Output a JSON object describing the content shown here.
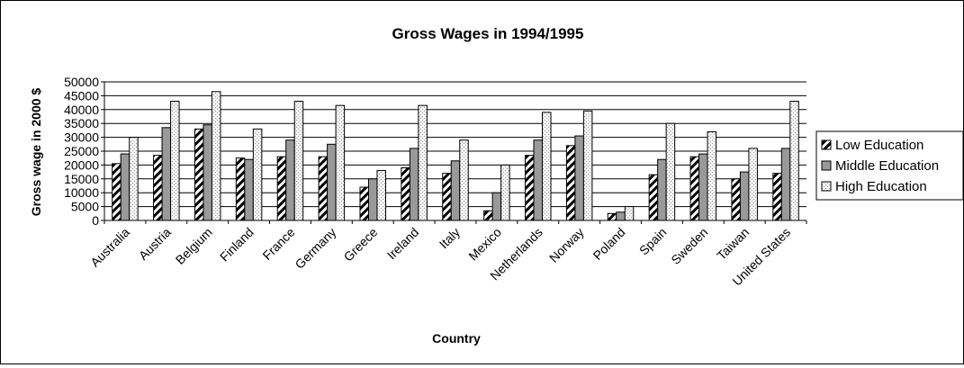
{
  "chart_data": {
    "type": "bar",
    "title": "Gross Wages in 1994/1995",
    "xlabel": "Country",
    "ylabel": "Gross wage in 2000 $",
    "ylim": [
      0,
      50000
    ],
    "yticks": [
      0,
      5000,
      10000,
      15000,
      20000,
      25000,
      30000,
      35000,
      40000,
      45000,
      50000
    ],
    "grid": true,
    "legend_position": "right",
    "categories": [
      "Australia",
      "Austria",
      "Belgium",
      "Finland",
      "France",
      "Germany",
      "Greece",
      "Ireland",
      "Italy",
      "Mexico",
      "Netherlands",
      "Norway",
      "Poland",
      "Spain",
      "Sweden",
      "Taiwan",
      "United States"
    ],
    "series": [
      {
        "name": "Low Education",
        "pattern": "diagonal-stripes",
        "color": "#000000",
        "values": [
          20500,
          23500,
          33000,
          22500,
          23000,
          23000,
          12000,
          19000,
          17000,
          3500,
          23500,
          27000,
          2500,
          16500,
          23000,
          15000,
          17000
        ]
      },
      {
        "name": "Middle Education",
        "pattern": "solid",
        "color": "#999999",
        "values": [
          24000,
          33500,
          34500,
          22000,
          29000,
          27500,
          15000,
          26000,
          21500,
          10000,
          29000,
          30500,
          3000,
          22000,
          24000,
          17500,
          26000
        ]
      },
      {
        "name": "High Education",
        "pattern": "dots",
        "color": "#e6e6e6",
        "values": [
          30000,
          43000,
          46500,
          33000,
          43000,
          41500,
          18000,
          41500,
          29000,
          20000,
          39000,
          39500,
          5000,
          35000,
          32000,
          26000,
          43000
        ]
      }
    ]
  }
}
